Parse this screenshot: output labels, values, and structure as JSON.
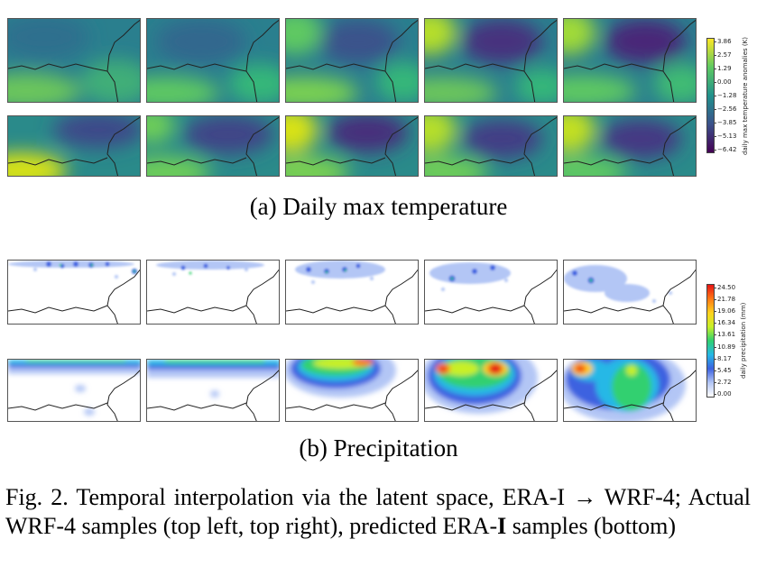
{
  "temperature": {
    "caption": "(a) Daily max temperature",
    "colorbar_label": "daily max temperature anomalies (K)",
    "ticks": [
      "3.86",
      "2.57",
      "1.29",
      "0.00",
      "−1.28",
      "−2.56",
      "−3.85",
      "−5.13",
      "−6.42"
    ],
    "colors": [
      "#fde725",
      "#5ec962",
      "#21918c",
      "#3b528b",
      "#440154"
    ]
  },
  "precipitation": {
    "caption": "(b) Precipitation",
    "colorbar_label": "daily precipitation (mm)",
    "ticks": [
      "24.50",
      "21.78",
      "19.06",
      "16.34",
      "13.61",
      "10.89",
      "8.17",
      "5.45",
      "2.72",
      "0.00"
    ],
    "colors": [
      "#ffffff",
      "#b3c6f5",
      "#3c62e0",
      "#26b8e6",
      "#30d070",
      "#c8f028",
      "#ffd21e",
      "#ff7814",
      "#e61414"
    ]
  },
  "figure_caption": {
    "prefix": "Fig. 2.  Temporal interpolation via the latent space, ERA-I → WRF-4; Actual WRF-4 samples (top left, top right), predicted ERA-",
    "bold": "I",
    "suffix": " samples (bottom)"
  }
}
